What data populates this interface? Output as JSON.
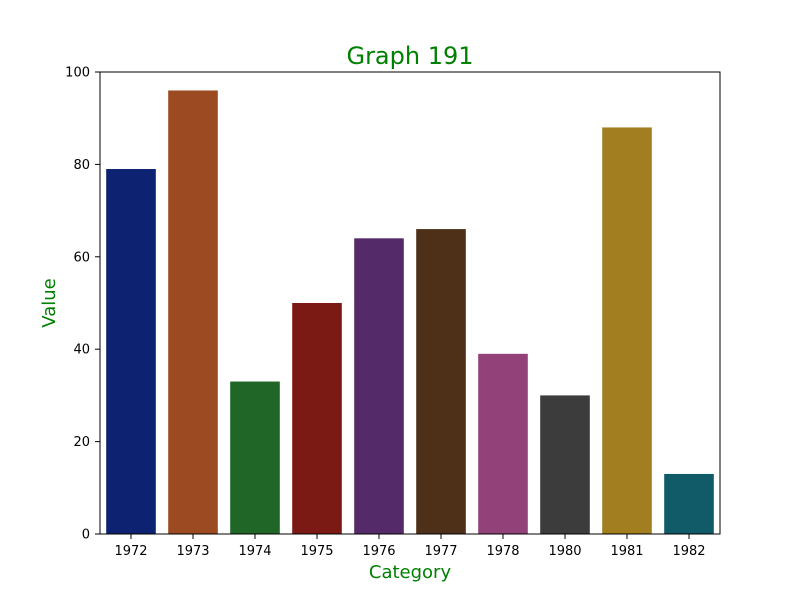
{
  "chart_data": {
    "type": "bar",
    "title": "Graph 191",
    "xlabel": "Category",
    "ylabel": "Value",
    "categories": [
      "1972",
      "1973",
      "1974",
      "1975",
      "1976",
      "1977",
      "1978",
      "1980",
      "1981",
      "1982"
    ],
    "values": [
      79,
      96,
      33,
      50,
      64,
      66,
      39,
      30,
      88,
      13
    ],
    "colors": [
      "#0d2270",
      "#9b4a21",
      "#1f6627",
      "#7b1915",
      "#552a68",
      "#4e2f18",
      "#934179",
      "#3c3c3c",
      "#a27e21",
      "#115a68"
    ],
    "ylim": [
      0,
      100
    ],
    "yticks": [
      0,
      20,
      40,
      60,
      80,
      100
    ],
    "grid": false,
    "legend": "none",
    "text_color": "#008000"
  }
}
